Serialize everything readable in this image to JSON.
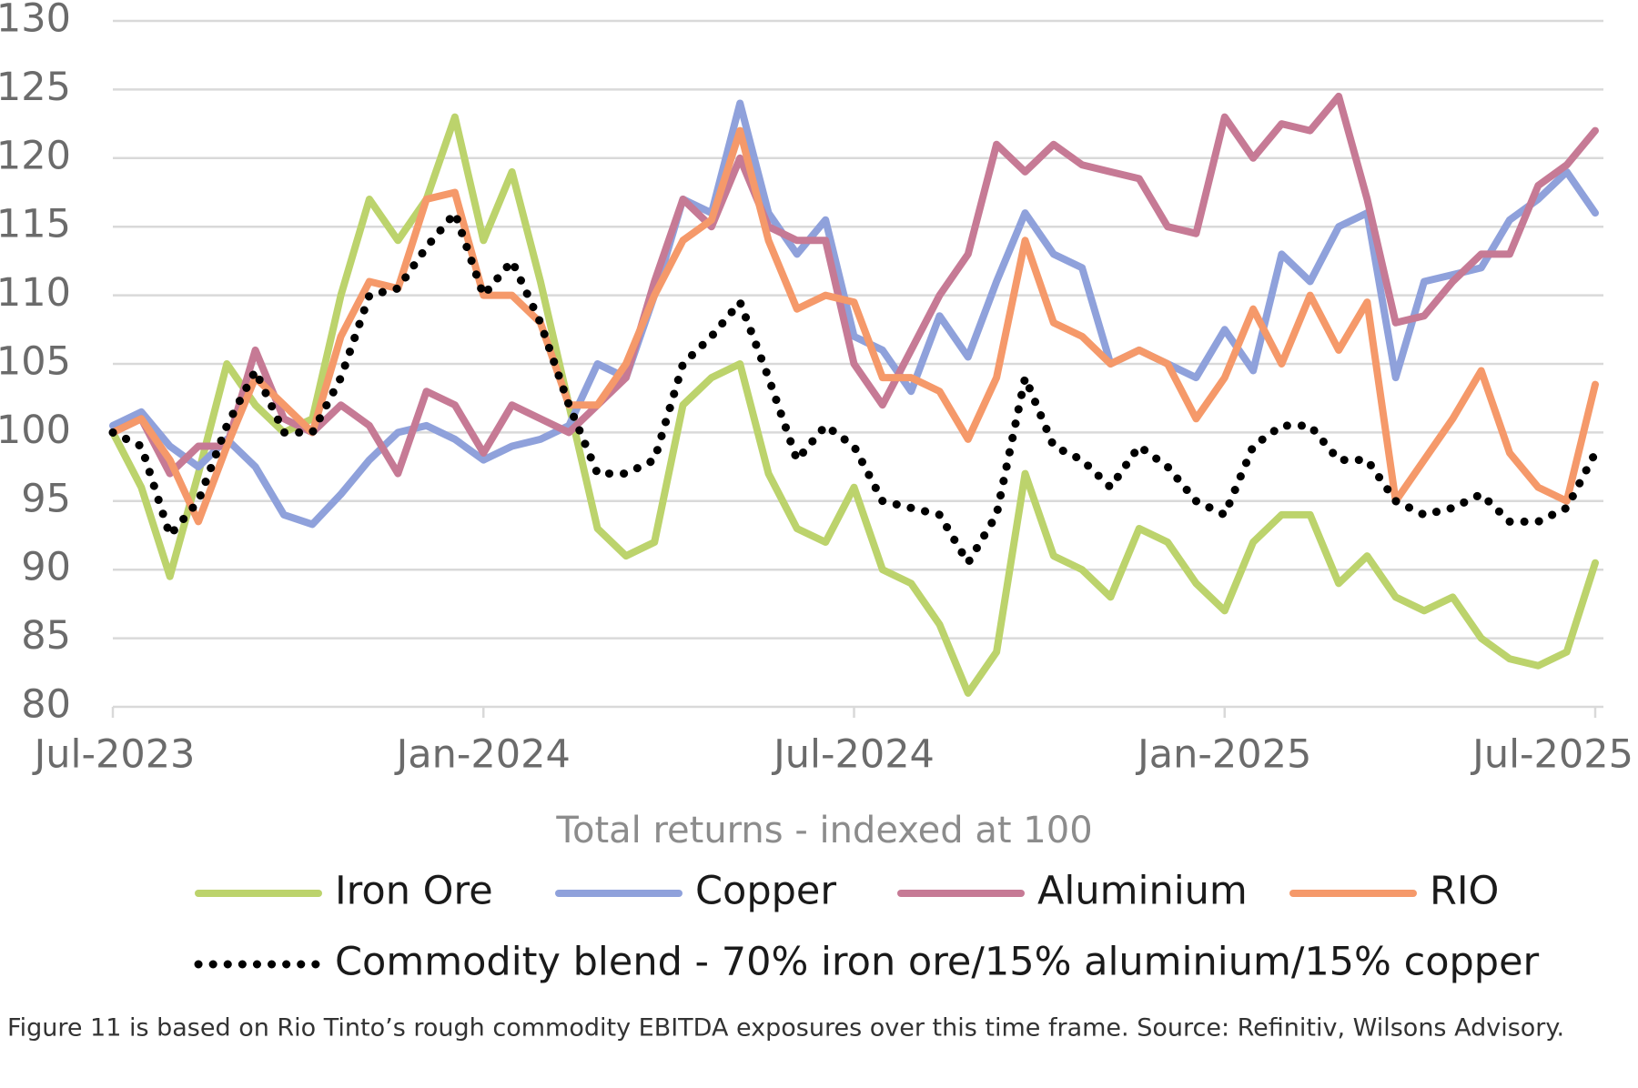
{
  "chart_data": {
    "type": "line",
    "x_label": "Total returns - indexed at 100",
    "caption": "Figure 11 is based on Rio Tinto’s rough commodity EBITDA exposures over this time frame. Source: Refinitiv, Wilsons Advisory.",
    "categories": [
      "Jul-2023",
      null,
      null,
      null,
      null,
      null,
      null,
      null,
      null,
      null,
      null,
      null,
      null,
      "Jan-2024",
      null,
      null,
      null,
      null,
      null,
      null,
      null,
      null,
      null,
      null,
      null,
      null,
      "Jul-2024",
      null,
      null,
      null,
      null,
      null,
      null,
      null,
      null,
      null,
      null,
      null,
      null,
      "Jan-2025",
      null,
      null,
      null,
      null,
      null,
      null,
      null,
      null,
      null,
      null,
      null,
      null,
      "Jul-2025"
    ],
    "ylim": [
      80,
      130
    ],
    "yticks": [
      80,
      85,
      90,
      95,
      100,
      105,
      110,
      115,
      120,
      125,
      130
    ],
    "grid": true,
    "series": [
      {
        "name": "Iron Ore",
        "color": "#bcd36c",
        "dash": "solid",
        "values": [
          100,
          96,
          89.5,
          97,
          105,
          102,
          100,
          101,
          110,
          117,
          114,
          117,
          123,
          114,
          119,
          111,
          102,
          93,
          91,
          92,
          102,
          104,
          105,
          97,
          93,
          92,
          96,
          90,
          89,
          86,
          81,
          84,
          97,
          91,
          90,
          88,
          93,
          92,
          89,
          87,
          92,
          94,
          94,
          89,
          91,
          88,
          87,
          88,
          85,
          83.5,
          83,
          84,
          90.5
        ]
      },
      {
        "name": "Copper",
        "color": "#8fa1db",
        "dash": "solid",
        "values": [
          100.5,
          101.5,
          99,
          97.5,
          99.5,
          97.5,
          94,
          93.3,
          95.5,
          98,
          100,
          100.5,
          99.5,
          98,
          99,
          99.5,
          100.5,
          105,
          104,
          110,
          117,
          116,
          124,
          116,
          113,
          115.5,
          107,
          106,
          103,
          108.5,
          105.5,
          111,
          116,
          113,
          112,
          105,
          106,
          105,
          104,
          107.5,
          104.5,
          113,
          111,
          115,
          116,
          104,
          111,
          111.5,
          112,
          115.5,
          117,
          119,
          116
        ]
      },
      {
        "name": "Aluminium",
        "color": "#c67a95",
        "dash": "solid",
        "values": [
          100,
          101,
          97,
          99,
          99,
          106,
          101,
          100,
          102,
          100.5,
          97,
          103,
          102,
          98.5,
          102,
          101,
          100,
          102,
          104,
          111,
          117,
          115,
          120,
          115,
          114,
          114,
          105,
          102,
          106,
          110,
          113,
          121,
          119,
          121,
          119.5,
          119,
          118.5,
          115,
          114.5,
          123,
          120,
          122.5,
          122,
          124.5,
          117,
          108,
          108.5,
          111,
          113,
          113,
          118,
          119.5,
          122
        ]
      },
      {
        "name": "RIO",
        "color": "#f5996a",
        "dash": "solid",
        "values": [
          100,
          101,
          98,
          93.5,
          99,
          104,
          102,
          100,
          107,
          111,
          110.5,
          117,
          117.5,
          110,
          110,
          108,
          102,
          102,
          105,
          110,
          114,
          115.5,
          122,
          114,
          109,
          110,
          109.5,
          104,
          104,
          103,
          99.5,
          104,
          114,
          108,
          107,
          105,
          106,
          105,
          101,
          104,
          109,
          105,
          110,
          106,
          109.5,
          95,
          98,
          101,
          104.5,
          98.5,
          96,
          95,
          103.5
        ]
      },
      {
        "name": "Commodity blend - 70% iron ore/15% aluminium/15% copper",
        "color": "#000000",
        "dash": "dotted",
        "values": [
          100,
          99,
          92.5,
          95,
          100.5,
          104.5,
          100,
          100,
          104,
          110,
          110.5,
          113.5,
          116,
          110,
          112.5,
          108,
          102,
          97,
          97,
          98,
          105,
          107,
          109.5,
          104,
          98,
          100.5,
          99,
          95,
          94.5,
          94,
          90.5,
          94,
          104,
          99,
          98,
          96,
          99,
          97.5,
          95,
          94,
          99,
          100.5,
          100.5,
          98,
          98,
          95,
          94,
          94.5,
          95.5,
          93.5,
          93.5,
          94.5,
          98.5
        ]
      }
    ]
  }
}
